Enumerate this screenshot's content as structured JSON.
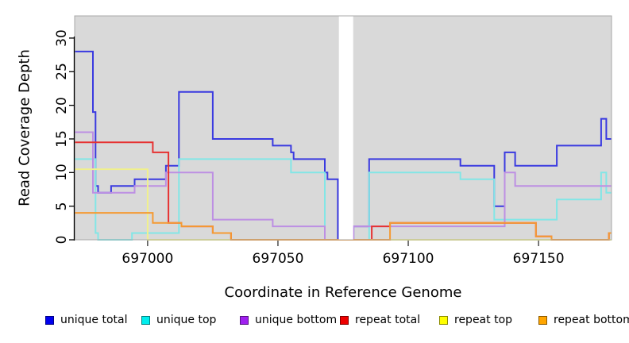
{
  "chart_data": {
    "type": "line",
    "subtype": "step-coverage",
    "title": "",
    "xlabel": "Coordinate in Reference Genome",
    "ylabel": "Read Coverage Depth",
    "xlim": [
      696972,
      697178
    ],
    "ylim": [
      0,
      33.3
    ],
    "x_ticks": [
      697000,
      697050,
      697100,
      697150
    ],
    "y_ticks": [
      0,
      5,
      10,
      15,
      20,
      25,
      30
    ],
    "grid": false,
    "panel_background": "#d9d9d9",
    "panel_border_color": "#a8a8a8",
    "axis_color": "#000000",
    "legend_position": "bottom",
    "gap_region": {
      "x_start": 697073.4,
      "x_end": 697078.9,
      "color": "#ffffff",
      "note": "white masked region with no data"
    },
    "series": [
      {
        "name": "unique total",
        "legend_color": "#0000EE",
        "line_color": "#3a3ae0",
        "points": [
          [
            696972,
            28
          ],
          [
            696979,
            19
          ],
          [
            696980,
            8
          ],
          [
            696981,
            7
          ],
          [
            696986,
            8
          ],
          [
            696995,
            9
          ],
          [
            697007,
            11
          ],
          [
            697012,
            22
          ],
          [
            697025,
            15
          ],
          [
            697048,
            14
          ],
          [
            697055,
            13
          ],
          [
            697056,
            12
          ],
          [
            697068,
            10
          ],
          [
            697069,
            9
          ],
          [
            697073,
            0
          ],
          [
            697079,
            2
          ],
          [
            697085,
            12
          ],
          [
            697120,
            11
          ],
          [
            697133,
            5
          ],
          [
            697137,
            13
          ],
          [
            697141,
            11
          ],
          [
            697157,
            14
          ],
          [
            697174,
            18
          ],
          [
            697176,
            15
          ]
        ]
      },
      {
        "name": "unique top",
        "legend_color": "#00EEEE",
        "line_color": "#82e6e6",
        "points": [
          [
            696972,
            12
          ],
          [
            696980,
            1
          ],
          [
            696981,
            0
          ],
          [
            696994,
            1
          ],
          [
            697012,
            12
          ],
          [
            697055,
            10
          ],
          [
            697068,
            0
          ],
          [
            697085,
            10
          ],
          [
            697120,
            9
          ],
          [
            697133,
            3
          ],
          [
            697157,
            6
          ],
          [
            697174,
            10
          ],
          [
            697176,
            7
          ]
        ]
      },
      {
        "name": "unique bottom",
        "legend_color": "#A020F0",
        "line_color": "#bd8fe3",
        "points": [
          [
            696972,
            16
          ],
          [
            696979,
            7
          ],
          [
            696995,
            8
          ],
          [
            697007,
            10
          ],
          [
            697025,
            3
          ],
          [
            697048,
            2
          ],
          [
            697068,
            0
          ],
          [
            697079,
            2
          ],
          [
            697137,
            10
          ],
          [
            697141,
            8
          ]
        ]
      },
      {
        "name": "repeat total",
        "legend_color": "#EE0000",
        "line_color": "#e63232",
        "points": [
          [
            696972,
            14.5
          ],
          [
            697002,
            13
          ],
          [
            697008,
            2.5
          ],
          [
            697013,
            2
          ],
          [
            697025,
            1
          ],
          [
            697032,
            0
          ],
          [
            697086,
            2
          ],
          [
            697093,
            2.5
          ],
          [
            697149,
            0.5
          ],
          [
            697155,
            0
          ],
          [
            697177,
            1
          ]
        ]
      },
      {
        "name": "repeat top",
        "legend_color": "#FFFF00",
        "line_color": "#f0f08c",
        "points": [
          [
            696972,
            10.5
          ],
          [
            697000,
            0
          ]
        ]
      },
      {
        "name": "repeat bottom",
        "legend_color": "#FFA500",
        "line_color": "#f59a33",
        "points": [
          [
            696972,
            4
          ],
          [
            697002,
            2.5
          ],
          [
            697013,
            2
          ],
          [
            697025,
            1
          ],
          [
            697032,
            0
          ],
          [
            697093,
            2.5
          ],
          [
            697149,
            0.5
          ],
          [
            697155,
            0
          ],
          [
            697177,
            1
          ]
        ]
      }
    ]
  },
  "layout_values": {
    "legend_item_x": [
      57,
      178,
      302,
      428,
      553,
      678
    ]
  }
}
